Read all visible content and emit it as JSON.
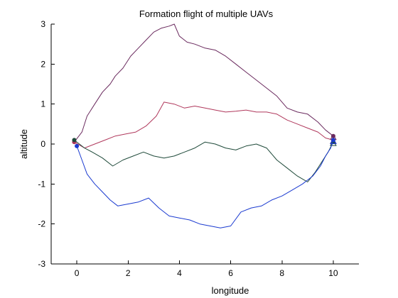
{
  "chart_data": {
    "type": "line",
    "title": "Formation flight of multiple UAVs",
    "xlabel": "longitude",
    "ylabel": "altitude",
    "xlim": [
      -1,
      11
    ],
    "ylim": [
      -3,
      3
    ],
    "xticks": [
      0,
      2,
      4,
      6,
      8,
      10
    ],
    "yticks": [
      -3,
      -2,
      -1,
      0,
      1,
      2,
      3
    ],
    "xtick_labels": [
      "0",
      "2",
      "4",
      "6",
      "8",
      "10"
    ],
    "ytick_labels": [
      "-3",
      "-2",
      "-1",
      "0",
      "1",
      "2",
      "3"
    ],
    "grid": false,
    "series": [
      {
        "color": "#6a2a5e",
        "x": [
          -0.1,
          0.2,
          0.4,
          0.7,
          1.0,
          1.3,
          1.5,
          1.8,
          2.1,
          2.4,
          2.7,
          3.0,
          3.3,
          3.6,
          3.8,
          4.0,
          4.3,
          4.6,
          5.0,
          5.4,
          5.8,
          6.2,
          6.6,
          7.0,
          7.4,
          7.8,
          8.2,
          8.6,
          9.0,
          9.4,
          9.7,
          10.0
        ],
        "y": [
          0.05,
          0.3,
          0.7,
          1.0,
          1.3,
          1.5,
          1.7,
          1.9,
          2.2,
          2.4,
          2.6,
          2.8,
          2.9,
          2.95,
          3.0,
          2.7,
          2.55,
          2.5,
          2.4,
          2.35,
          2.2,
          2.0,
          1.8,
          1.6,
          1.4,
          1.2,
          0.9,
          0.8,
          0.75,
          0.55,
          0.35,
          0.2
        ]
      },
      {
        "color": "#b0385c",
        "x": [
          -0.1,
          0.3,
          0.7,
          1.1,
          1.5,
          1.9,
          2.3,
          2.7,
          3.1,
          3.4,
          3.8,
          4.2,
          4.6,
          5.0,
          5.4,
          5.8,
          6.2,
          6.6,
          7.0,
          7.4,
          7.8,
          8.2,
          8.6,
          9.0,
          9.4,
          9.7,
          10.0
        ],
        "y": [
          0.05,
          -0.1,
          0.0,
          0.1,
          0.2,
          0.25,
          0.3,
          0.45,
          0.7,
          1.05,
          1.0,
          0.9,
          0.95,
          0.9,
          0.85,
          0.8,
          0.82,
          0.85,
          0.8,
          0.8,
          0.75,
          0.6,
          0.5,
          0.4,
          0.3,
          0.15,
          0.1
        ]
      },
      {
        "color": "#1f4a3a",
        "x": [
          -0.1,
          0.3,
          0.6,
          1.0,
          1.4,
          1.8,
          2.2,
          2.6,
          3.0,
          3.4,
          3.8,
          4.2,
          4.6,
          5.0,
          5.4,
          5.8,
          6.2,
          6.6,
          7.0,
          7.4,
          7.8,
          8.2,
          8.6,
          9.0,
          9.3,
          9.6,
          9.8,
          10.0
        ],
        "y": [
          0.1,
          -0.1,
          -0.2,
          -0.35,
          -0.55,
          -0.4,
          -0.3,
          -0.2,
          -0.3,
          -0.35,
          -0.3,
          -0.2,
          -0.1,
          0.05,
          0.0,
          -0.1,
          -0.15,
          -0.05,
          0.0,
          -0.1,
          -0.4,
          -0.6,
          -0.8,
          -0.95,
          -0.7,
          -0.4,
          -0.2,
          0.05
        ]
      },
      {
        "color": "#1a3ad0",
        "x": [
          0.0,
          0.2,
          0.4,
          0.7,
          1.0,
          1.3,
          1.6,
          2.0,
          2.4,
          2.8,
          3.2,
          3.6,
          4.0,
          4.4,
          4.8,
          5.2,
          5.6,
          6.0,
          6.4,
          6.8,
          7.2,
          7.6,
          8.0,
          8.4,
          8.8,
          9.2,
          9.5,
          9.7,
          9.9,
          10.0
        ],
        "y": [
          -0.05,
          -0.4,
          -0.75,
          -1.0,
          -1.2,
          -1.4,
          -1.55,
          -1.5,
          -1.45,
          -1.35,
          -1.6,
          -1.8,
          -1.85,
          -1.9,
          -2.0,
          -2.05,
          -2.1,
          -2.05,
          -1.7,
          -1.6,
          -1.55,
          -1.4,
          -1.3,
          -1.15,
          -1.0,
          -0.8,
          -0.55,
          -0.3,
          -0.1,
          0.1
        ]
      }
    ]
  }
}
